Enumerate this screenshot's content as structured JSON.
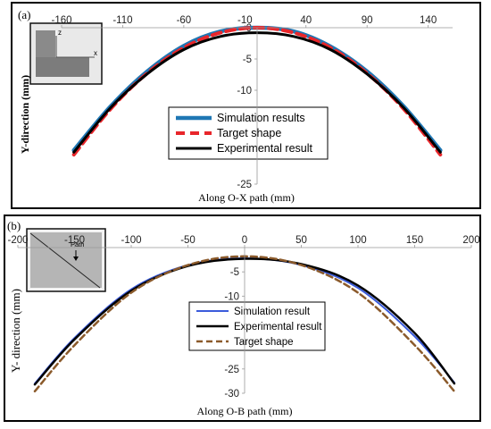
{
  "chart_data": [
    {
      "type": "line",
      "panel_label": "(a)",
      "xlabel": "Along O-X path (mm)",
      "ylabel": "Y-direction (mm)",
      "xlim": [
        -160,
        160
      ],
      "ylim": [
        -25,
        0
      ],
      "x_ticks": [
        "-160",
        "-110",
        "-60",
        "-10",
        "40",
        "90",
        "140"
      ],
      "x_tick_values": [
        -160,
        -110,
        -60,
        -10,
        40,
        90,
        140
      ],
      "y_ticks": [
        "0",
        "-5",
        "-10",
        "-15",
        "-20",
        "-25"
      ],
      "y_tick_values": [
        0,
        -5,
        -10,
        -15,
        -20,
        -25
      ],
      "grid": false,
      "legend_position": "center",
      "inset_axis_labels": [
        "z",
        "x"
      ],
      "series": [
        {
          "name": "Simulation results",
          "color": "#1f77b4",
          "style": "solid",
          "x": [
            -150,
            -120,
            -90,
            -60,
            -30,
            0,
            30,
            60,
            90,
            120,
            150
          ],
          "y": [
            -19.6,
            -12.6,
            -7.0,
            -2.9,
            -0.6,
            0.0,
            -0.6,
            -3.0,
            -7.0,
            -12.6,
            -19.6
          ]
        },
        {
          "name": "Target shape",
          "color": "#e8262b",
          "style": "dashed",
          "x": [
            -150,
            -120,
            -90,
            -60,
            -30,
            0,
            30,
            60,
            90,
            120,
            150
          ],
          "y": [
            -20.3,
            -13.0,
            -7.3,
            -3.2,
            -0.8,
            0.0,
            -0.8,
            -3.2,
            -7.3,
            -13.0,
            -20.3
          ]
        },
        {
          "name": "Experimental result",
          "color": "#000000",
          "style": "solid",
          "x": [
            -150,
            -120,
            -90,
            -60,
            -30,
            0,
            30,
            60,
            90,
            120,
            150
          ],
          "y": [
            -19.9,
            -12.8,
            -7.4,
            -3.5,
            -1.4,
            -0.8,
            -1.4,
            -3.5,
            -7.4,
            -12.8,
            -19.9
          ]
        }
      ]
    },
    {
      "type": "line",
      "panel_label": "(b)",
      "xlabel": "Along O-B path (mm)",
      "ylabel": "Y- direction (mm)",
      "xlim": [
        -200,
        200
      ],
      "ylim": [
        -30,
        0
      ],
      "x_ticks": [
        "-200",
        "-150",
        "-100",
        "-50",
        "0",
        "50",
        "100",
        "150",
        "200"
      ],
      "x_tick_values": [
        -200,
        -150,
        -100,
        -50,
        0,
        50,
        100,
        150,
        200
      ],
      "y_ticks": [
        "0",
        "-5",
        "-10",
        "-15",
        "-20",
        "-25",
        "-30"
      ],
      "y_tick_values": [
        0,
        -5,
        -10,
        -15,
        -20,
        -25,
        -30
      ],
      "grid": false,
      "legend_position": "center",
      "inset_annotation": "Path",
      "series": [
        {
          "name": "Simulation result",
          "color": "#3b5bdb",
          "style": "solid",
          "x": [
            -185,
            -150,
            -100,
            -50,
            0,
            50,
            100,
            150,
            185
          ],
          "y": [
            -28.0,
            -18.6,
            -8.6,
            -3.6,
            -2.2,
            -3.6,
            -8.3,
            -18.3,
            -27.8
          ]
        },
        {
          "name": "Experimental result",
          "color": "#000000",
          "style": "solid",
          "x": [
            -185,
            -150,
            -100,
            -50,
            0,
            50,
            100,
            150,
            185
          ],
          "y": [
            -28.2,
            -18.9,
            -8.9,
            -3.8,
            -2.3,
            -3.4,
            -7.8,
            -17.6,
            -28.0
          ]
        },
        {
          "name": "Target shape",
          "color": "#8b5a2b",
          "style": "dashed",
          "x": [
            -185,
            -150,
            -100,
            -50,
            0,
            50,
            100,
            150,
            185
          ],
          "y": [
            -29.6,
            -20.1,
            -9.3,
            -3.6,
            -1.8,
            -3.6,
            -9.3,
            -20.1,
            -29.6
          ]
        }
      ]
    }
  ]
}
